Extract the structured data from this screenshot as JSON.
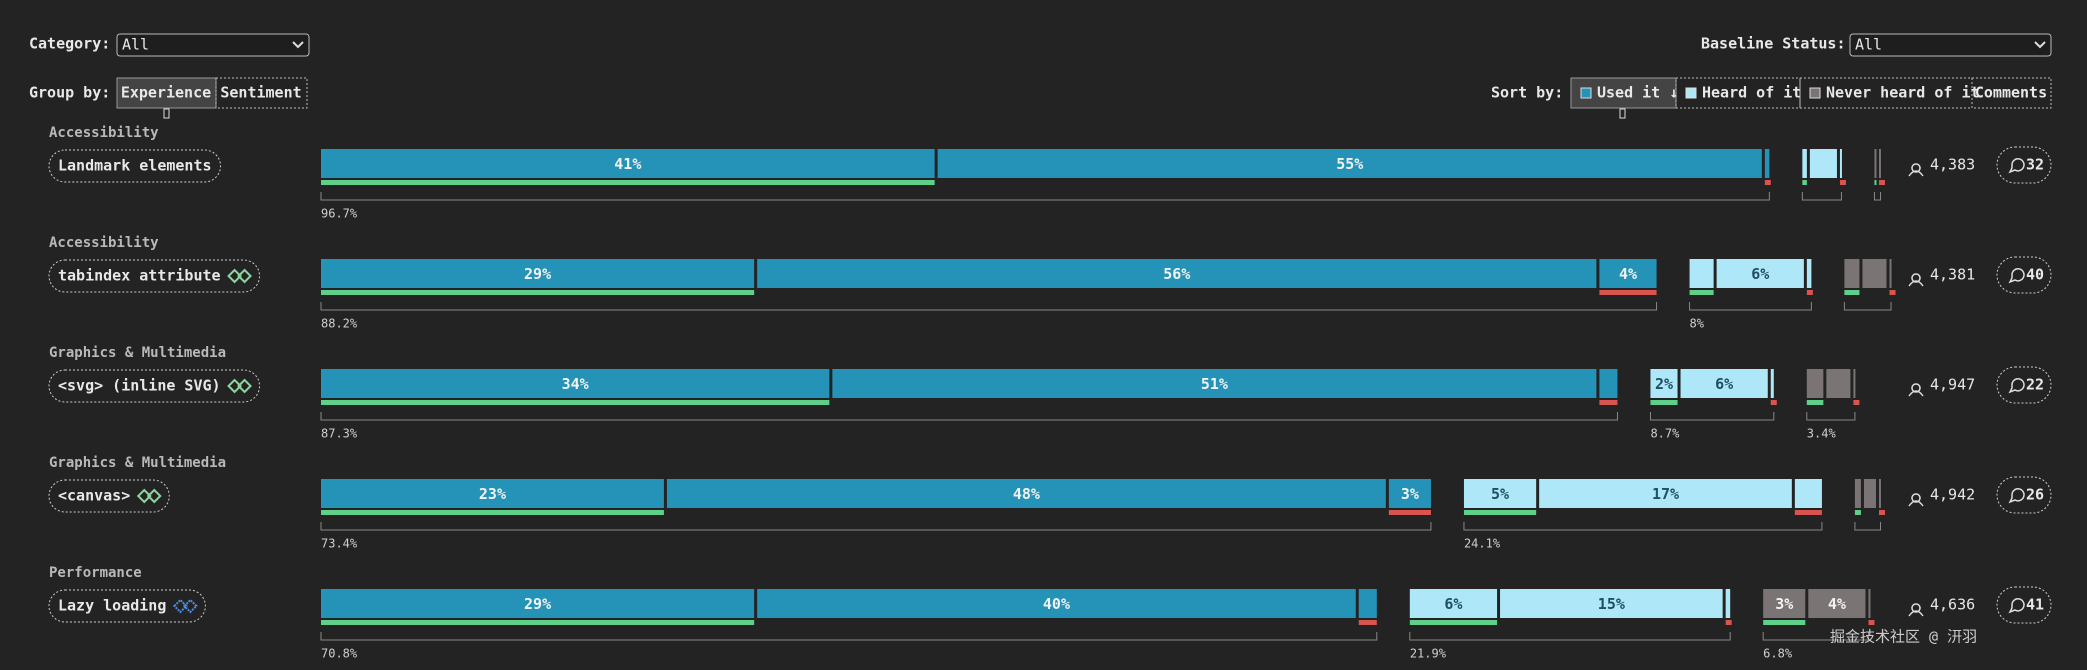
{
  "filters": {
    "category_label": "Category:",
    "category_value": "All",
    "group_by_label": "Group by:",
    "group_by_options": [
      "Experience",
      "Sentiment"
    ],
    "baseline_label": "Baseline Status:",
    "baseline_value": "All",
    "sort_by_label": "Sort by:",
    "sort_options": [
      "Used it ↓",
      "Heard of it",
      "Never heard of it",
      "Comments"
    ]
  },
  "rows": [
    {
      "category": "Accessibility",
      "name": "Landmark elements",
      "users": "4,383",
      "comments": "32",
      "groups": [
        {
          "segments": [
            {
              "value": 41,
              "label": "41%"
            },
            {
              "value": 55,
              "label": "55%"
            },
            {
              "value": 0.5
            }
          ],
          "total": "96.7%"
        },
        {
          "segments": [
            {
              "value": 0.5
            },
            {
              "value": 2
            },
            {
              "value": 0.3
            }
          ]
        },
        {
          "segments": [
            {
              "value": 0.3
            },
            {
              "value": 0.3
            }
          ]
        }
      ]
    },
    {
      "category": "Accessibility",
      "name": "tabindex attribute",
      "users": "4,381",
      "comments": "40",
      "groups": [
        {
          "segments": [
            {
              "value": 29,
              "label": "29%"
            },
            {
              "value": 56,
              "label": "56%"
            },
            {
              "value": 4,
              "label": "4%"
            }
          ],
          "total": "88.2%"
        },
        {
          "segments": [
            {
              "value": 1.8
            },
            {
              "value": 6,
              "label": "6%"
            },
            {
              "value": 0.5
            }
          ],
          "total": "8%"
        },
        {
          "segments": [
            {
              "value": 1.2
            },
            {
              "value": 1.8
            },
            {
              "value": 0.3
            }
          ]
        }
      ]
    },
    {
      "category": "Graphics & Multimedia",
      "name": "<svg> (inline SVG)",
      "users": "4,947",
      "comments": "22",
      "groups": [
        {
          "segments": [
            {
              "value": 34,
              "label": "34%"
            },
            {
              "value": 51,
              "label": "51%"
            },
            {
              "value": 1.4
            }
          ],
          "total": "87.3%"
        },
        {
          "segments": [
            {
              "value": 2,
              "label": "2%"
            },
            {
              "value": 6,
              "label": "6%"
            },
            {
              "value": 0.4
            }
          ],
          "total": "8.7%"
        },
        {
          "segments": [
            {
              "value": 1.3
            },
            {
              "value": 1.8
            },
            {
              "value": 0.3
            }
          ],
          "total": "3.4%"
        }
      ]
    },
    {
      "category": "Graphics & Multimedia",
      "name": "<canvas>",
      "users": "4,942",
      "comments": "26",
      "groups": [
        {
          "segments": [
            {
              "value": 23,
              "label": "23%"
            },
            {
              "value": 48,
              "label": "48%"
            },
            {
              "value": 3,
              "label": "3%"
            }
          ],
          "total": "73.4%"
        },
        {
          "segments": [
            {
              "value": 5,
              "label": "5%"
            },
            {
              "value": 17,
              "label": "17%"
            },
            {
              "value": 2
            }
          ],
          "total": "24.1%"
        },
        {
          "segments": [
            {
              "value": 0.6
            },
            {
              "value": 1
            },
            {
              "value": 0.3
            }
          ]
        }
      ]
    },
    {
      "category": "Performance",
      "name": "Lazy loading",
      "users": "4,636",
      "comments": "41",
      "groups": [
        {
          "segments": [
            {
              "value": 29,
              "label": "29%"
            },
            {
              "value": 40,
              "label": "40%"
            },
            {
              "value": 1.4
            }
          ],
          "total": "70.8%"
        },
        {
          "segments": [
            {
              "value": 6,
              "label": "6%"
            },
            {
              "value": 15,
              "label": "15%"
            },
            {
              "value": 0.5
            }
          ],
          "total": "21.9%"
        },
        {
          "segments": [
            {
              "value": 3,
              "label": "3%"
            },
            {
              "value": 4,
              "label": "4%"
            },
            {
              "value": 0.2
            }
          ],
          "total": "6.8%"
        }
      ]
    }
  ],
  "watermark": "掘金技术社区 @ 汧羽"
}
